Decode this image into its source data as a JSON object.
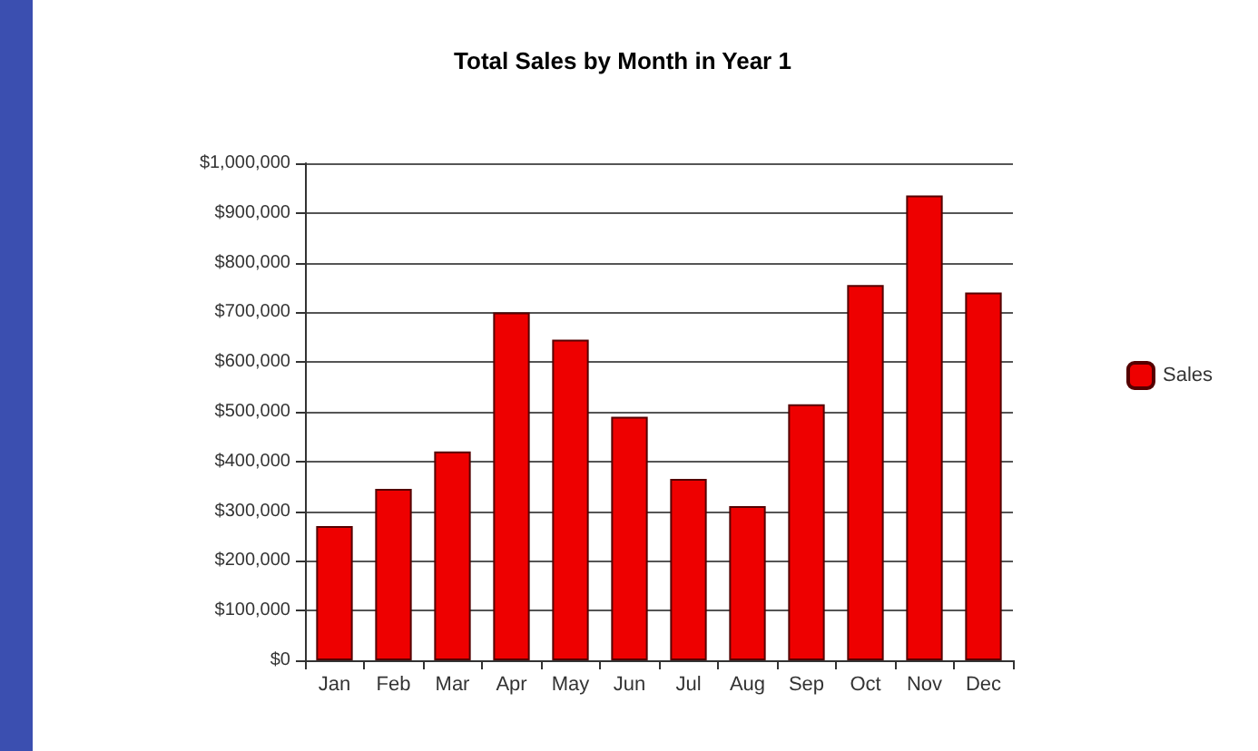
{
  "chart_data": {
    "type": "bar",
    "title": "Total Sales by Month in Year 1",
    "categories": [
      "Jan",
      "Feb",
      "Mar",
      "Apr",
      "May",
      "Jun",
      "Jul",
      "Aug",
      "Sep",
      "Oct",
      "Nov",
      "Dec"
    ],
    "series": [
      {
        "name": "Sales",
        "color": "#ee0000",
        "values": [
          270000,
          345000,
          420000,
          700000,
          645000,
          490000,
          365000,
          310000,
          515000,
          755000,
          935000,
          740000
        ]
      }
    ],
    "ylim": [
      0,
      1000000
    ],
    "yticks": [
      {
        "value": 0,
        "label": "$0"
      },
      {
        "value": 100000,
        "label": "$100,000"
      },
      {
        "value": 200000,
        "label": "$200,000"
      },
      {
        "value": 300000,
        "label": "$300,000"
      },
      {
        "value": 400000,
        "label": "$400,000"
      },
      {
        "value": 500000,
        "label": "$500,000"
      },
      {
        "value": 600000,
        "label": "$600,000"
      },
      {
        "value": 700000,
        "label": "$700,000"
      },
      {
        "value": 800000,
        "label": "$800,000"
      },
      {
        "value": 900000,
        "label": "$900,000"
      },
      {
        "value": 1000000,
        "label": "$1,000,000"
      }
    ],
    "grid": true,
    "legend": "right"
  }
}
